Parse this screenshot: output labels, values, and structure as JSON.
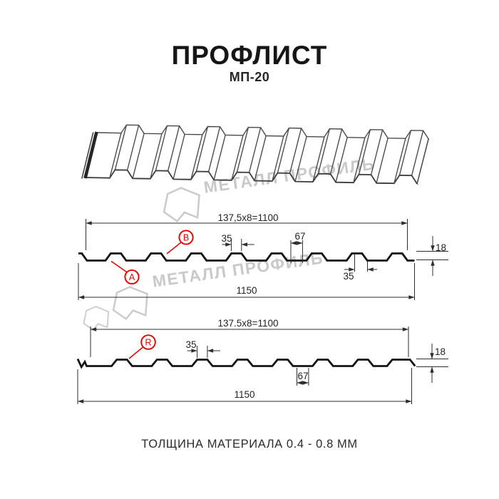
{
  "header": {
    "title": "ПРОФЛИСТ",
    "subtitle": "МП-20"
  },
  "footer": {
    "text": "ТОЛЩИНА МАТЕРИАЛА 0.4 - 0.8 ММ"
  },
  "watermark": {
    "text": "МЕТАЛЛ ПРОФИЛЬ"
  },
  "colors": {
    "accent_red": "#e60000",
    "drawing_line": "#141414",
    "dimension_line": "#2d2d2d",
    "sheet_3d_line": "#3c3c3c",
    "watermark_gray": "#c9c9c9"
  },
  "profile_ab": {
    "working_width": "137,5x8=1100",
    "full_width": "1150",
    "rib_top_width": "35",
    "valley_width": "67",
    "profile_height": "18",
    "rib_bottom_width": "35",
    "edge_label_a": "A",
    "edge_label_b": "B"
  },
  "profile_r": {
    "working_width": "137.5x8=1100",
    "full_width": "1150",
    "rib_top_width": "35",
    "valley_width": "67",
    "profile_height": "18",
    "edge_label_r": "R"
  }
}
